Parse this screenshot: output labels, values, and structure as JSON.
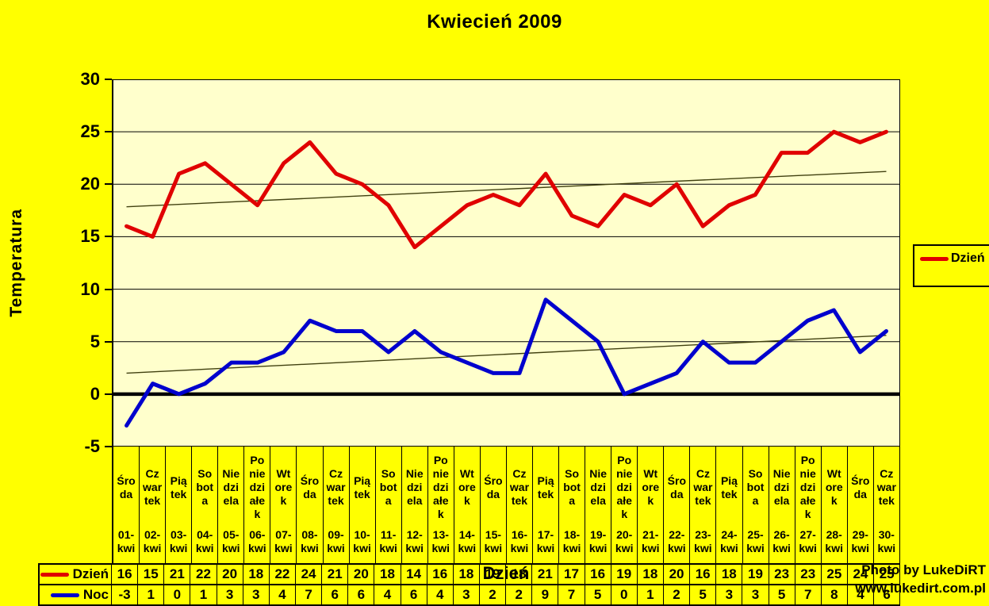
{
  "title": "Kwiecień 2009",
  "y_axis": {
    "title": "Temperatura",
    "ticks": [
      "30",
      "25",
      "20",
      "15",
      "10",
      "5",
      "0",
      "-5"
    ]
  },
  "x_axis": {
    "title": "Dzień"
  },
  "watermark": {
    "line1": "Photo by LukeDiRT",
    "line2": "www.lukedirt.com.pl"
  },
  "colors": {
    "background": "#ffff00",
    "plot_background": "#ffffcc",
    "dzien_line": "#e00000",
    "noc_line": "#0000cd",
    "trendline": "#404010",
    "gridline": "#000000",
    "zero_line": "#000000",
    "text": "#000000"
  },
  "chart_data": {
    "type": "line",
    "title": "Kwiecień 2009",
    "xlabel": "Dzień",
    "ylabel": "Temperatura",
    "ylim": [
      -5,
      30
    ],
    "y_tick_step": 5,
    "grid": true,
    "legend_position": "right",
    "trendlines": "thin linear least-squares trendline for each series",
    "categories": [
      {
        "label": "Środa",
        "day": "Śro\nda",
        "date": "01-\nkwi"
      },
      {
        "label": "Czwartek",
        "day": "Cz\nwar\ntek",
        "date": "02-\nkwi"
      },
      {
        "label": "Piątek",
        "day": "Pią\ntek",
        "date": "03-\nkwi"
      },
      {
        "label": "Sobota",
        "day": "So\nbot\na",
        "date": "04-\nkwi"
      },
      {
        "label": "Niedziela",
        "day": "Nie\ndzi\nela",
        "date": "05-\nkwi"
      },
      {
        "label": "Poniedziałek",
        "day": "Po\nnie\ndzi\nałe\nk",
        "date": "06-\nkwi"
      },
      {
        "label": "Wtorek",
        "day": "Wt\nore\nk",
        "date": "07-\nkwi"
      },
      {
        "label": "Środa",
        "day": "Śro\nda",
        "date": "08-\nkwi"
      },
      {
        "label": "Czwartek",
        "day": "Cz\nwar\ntek",
        "date": "09-\nkwi"
      },
      {
        "label": "Piątek",
        "day": "Pią\ntek",
        "date": "10-\nkwi"
      },
      {
        "label": "Sobota",
        "day": "So\nbot\na",
        "date": "11-\nkwi"
      },
      {
        "label": "Niedziela",
        "day": "Nie\ndzi\nela",
        "date": "12-\nkwi"
      },
      {
        "label": "Poniedziałek",
        "day": "Po\nnie\ndzi\nałe\nk",
        "date": "13-\nkwi"
      },
      {
        "label": "Wtorek",
        "day": "Wt\nore\nk",
        "date": "14-\nkwi"
      },
      {
        "label": "Środa",
        "day": "Śro\nda",
        "date": "15-\nkwi"
      },
      {
        "label": "Czwartek",
        "day": "Cz\nwar\ntek",
        "date": "16-\nkwi"
      },
      {
        "label": "Piątek",
        "day": "Pią\ntek",
        "date": "17-\nkwi"
      },
      {
        "label": "Sobota",
        "day": "So\nbot\na",
        "date": "18-\nkwi"
      },
      {
        "label": "Niedziela",
        "day": "Nie\ndzi\nela",
        "date": "19-\nkwi"
      },
      {
        "label": "Poniedziałek",
        "day": "Po\nnie\ndzi\nałe\nk",
        "date": "20-\nkwi"
      },
      {
        "label": "Wtorek",
        "day": "Wt\nore\nk",
        "date": "21-\nkwi"
      },
      {
        "label": "Środa",
        "day": "Śro\nda",
        "date": "22-\nkwi"
      },
      {
        "label": "Czwartek",
        "day": "Cz\nwar\ntek",
        "date": "23-\nkwi"
      },
      {
        "label": "Piątek",
        "day": "Pią\ntek",
        "date": "24-\nkwi"
      },
      {
        "label": "Sobota",
        "day": "So\nbot\na",
        "date": "25-\nkwi"
      },
      {
        "label": "Niedziela",
        "day": "Nie\ndzi\nela",
        "date": "26-\nkwi"
      },
      {
        "label": "Poniedziałek",
        "day": "Po\nnie\ndzi\nałe\nk",
        "date": "27-\nkwi"
      },
      {
        "label": "Wtorek",
        "day": "Wt\nore\nk",
        "date": "28-\nkwi"
      },
      {
        "label": "Środa",
        "day": "Śro\nda",
        "date": "29-\nkwi"
      },
      {
        "label": "Czwartek",
        "day": "Cz\nwar\ntek",
        "date": "30-\nkwi"
      }
    ],
    "series": [
      {
        "key": "dzien",
        "name": "Dzień",
        "color": "#e00000",
        "values": [
          16,
          15,
          21,
          22,
          20,
          18,
          22,
          24,
          21,
          20,
          18,
          14,
          16,
          18,
          19,
          18,
          21,
          17,
          16,
          19,
          18,
          20,
          16,
          18,
          19,
          23,
          23,
          25,
          24,
          25
        ]
      },
      {
        "key": "noc",
        "name": "Noc",
        "color": "#0000cd",
        "values": [
          -3,
          1,
          0,
          1,
          3,
          3,
          4,
          7,
          6,
          6,
          4,
          6,
          4,
          3,
          2,
          2,
          9,
          7,
          5,
          0,
          1,
          2,
          5,
          3,
          3,
          5,
          7,
          8,
          4,
          6
        ]
      }
    ]
  }
}
